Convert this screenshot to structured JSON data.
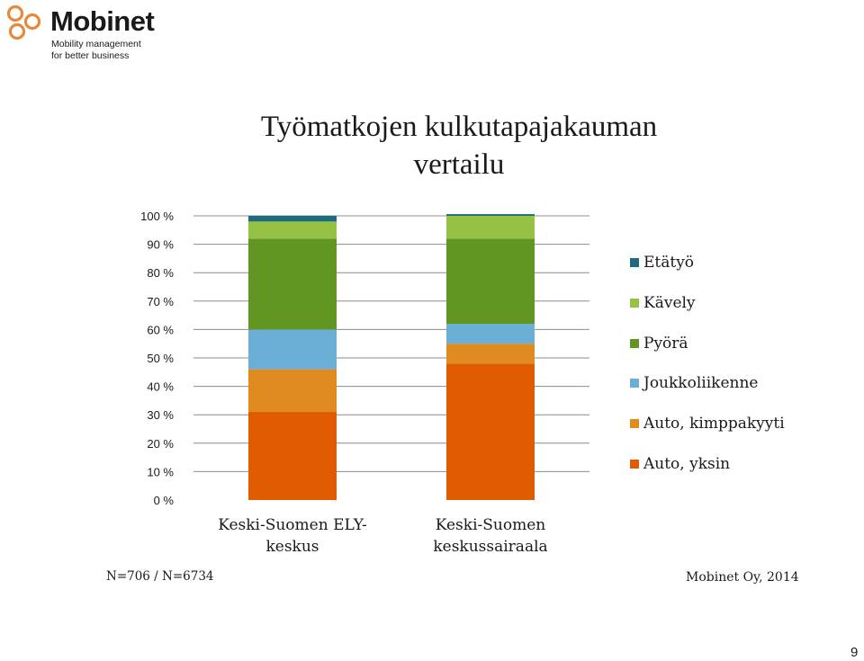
{
  "logo": {
    "name": "Mobinet",
    "tagline_line1": "Mobility management",
    "tagline_line2": "for better business",
    "color": "#e8883a"
  },
  "chart_data": {
    "type": "bar",
    "stacked": true,
    "title": "Työmatkojen kulkutapajakauman vertailu",
    "title_line1": "Työmatkojen kulkutapajakauman",
    "title_line2": "vertailu",
    "categories": [
      "Keski-Suomen ELY-keskus",
      "Keski-Suomen keskussairaala"
    ],
    "category_lines": [
      [
        "Keski-Suomen ELY-",
        "keskus"
      ],
      [
        "Keski-Suomen",
        "keskussairaala"
      ]
    ],
    "series": [
      {
        "name": "Auto, yksin",
        "color": "#e05a00",
        "values": [
          31,
          48
        ]
      },
      {
        "name": "Auto, kimppakyyti",
        "color": "#e08b20",
        "values": [
          15,
          7
        ]
      },
      {
        "name": "Joukkoliikenne",
        "color": "#6baed6",
        "values": [
          14,
          7
        ]
      },
      {
        "name": "Pyörä",
        "color": "#629623",
        "values": [
          32,
          30
        ]
      },
      {
        "name": "Kävely",
        "color": "#95c244",
        "values": [
          6,
          8
        ]
      },
      {
        "name": "Etätyö",
        "color": "#1e6b7b",
        "values": [
          2,
          0.6
        ]
      }
    ],
    "y_ticks": [
      "0 %",
      "10 %",
      "20 %",
      "30 %",
      "40 %",
      "50 %",
      "60 %",
      "70 %",
      "80 %",
      "90 %",
      "100 %"
    ],
    "ylim": [
      0,
      100
    ],
    "grid": true,
    "legend_position": "right",
    "xlabel": "",
    "ylabel": ""
  },
  "notes": {
    "sample_size": "N=706 / N=6734",
    "source": "Mobinet Oy, 2014"
  },
  "page_number": "9"
}
